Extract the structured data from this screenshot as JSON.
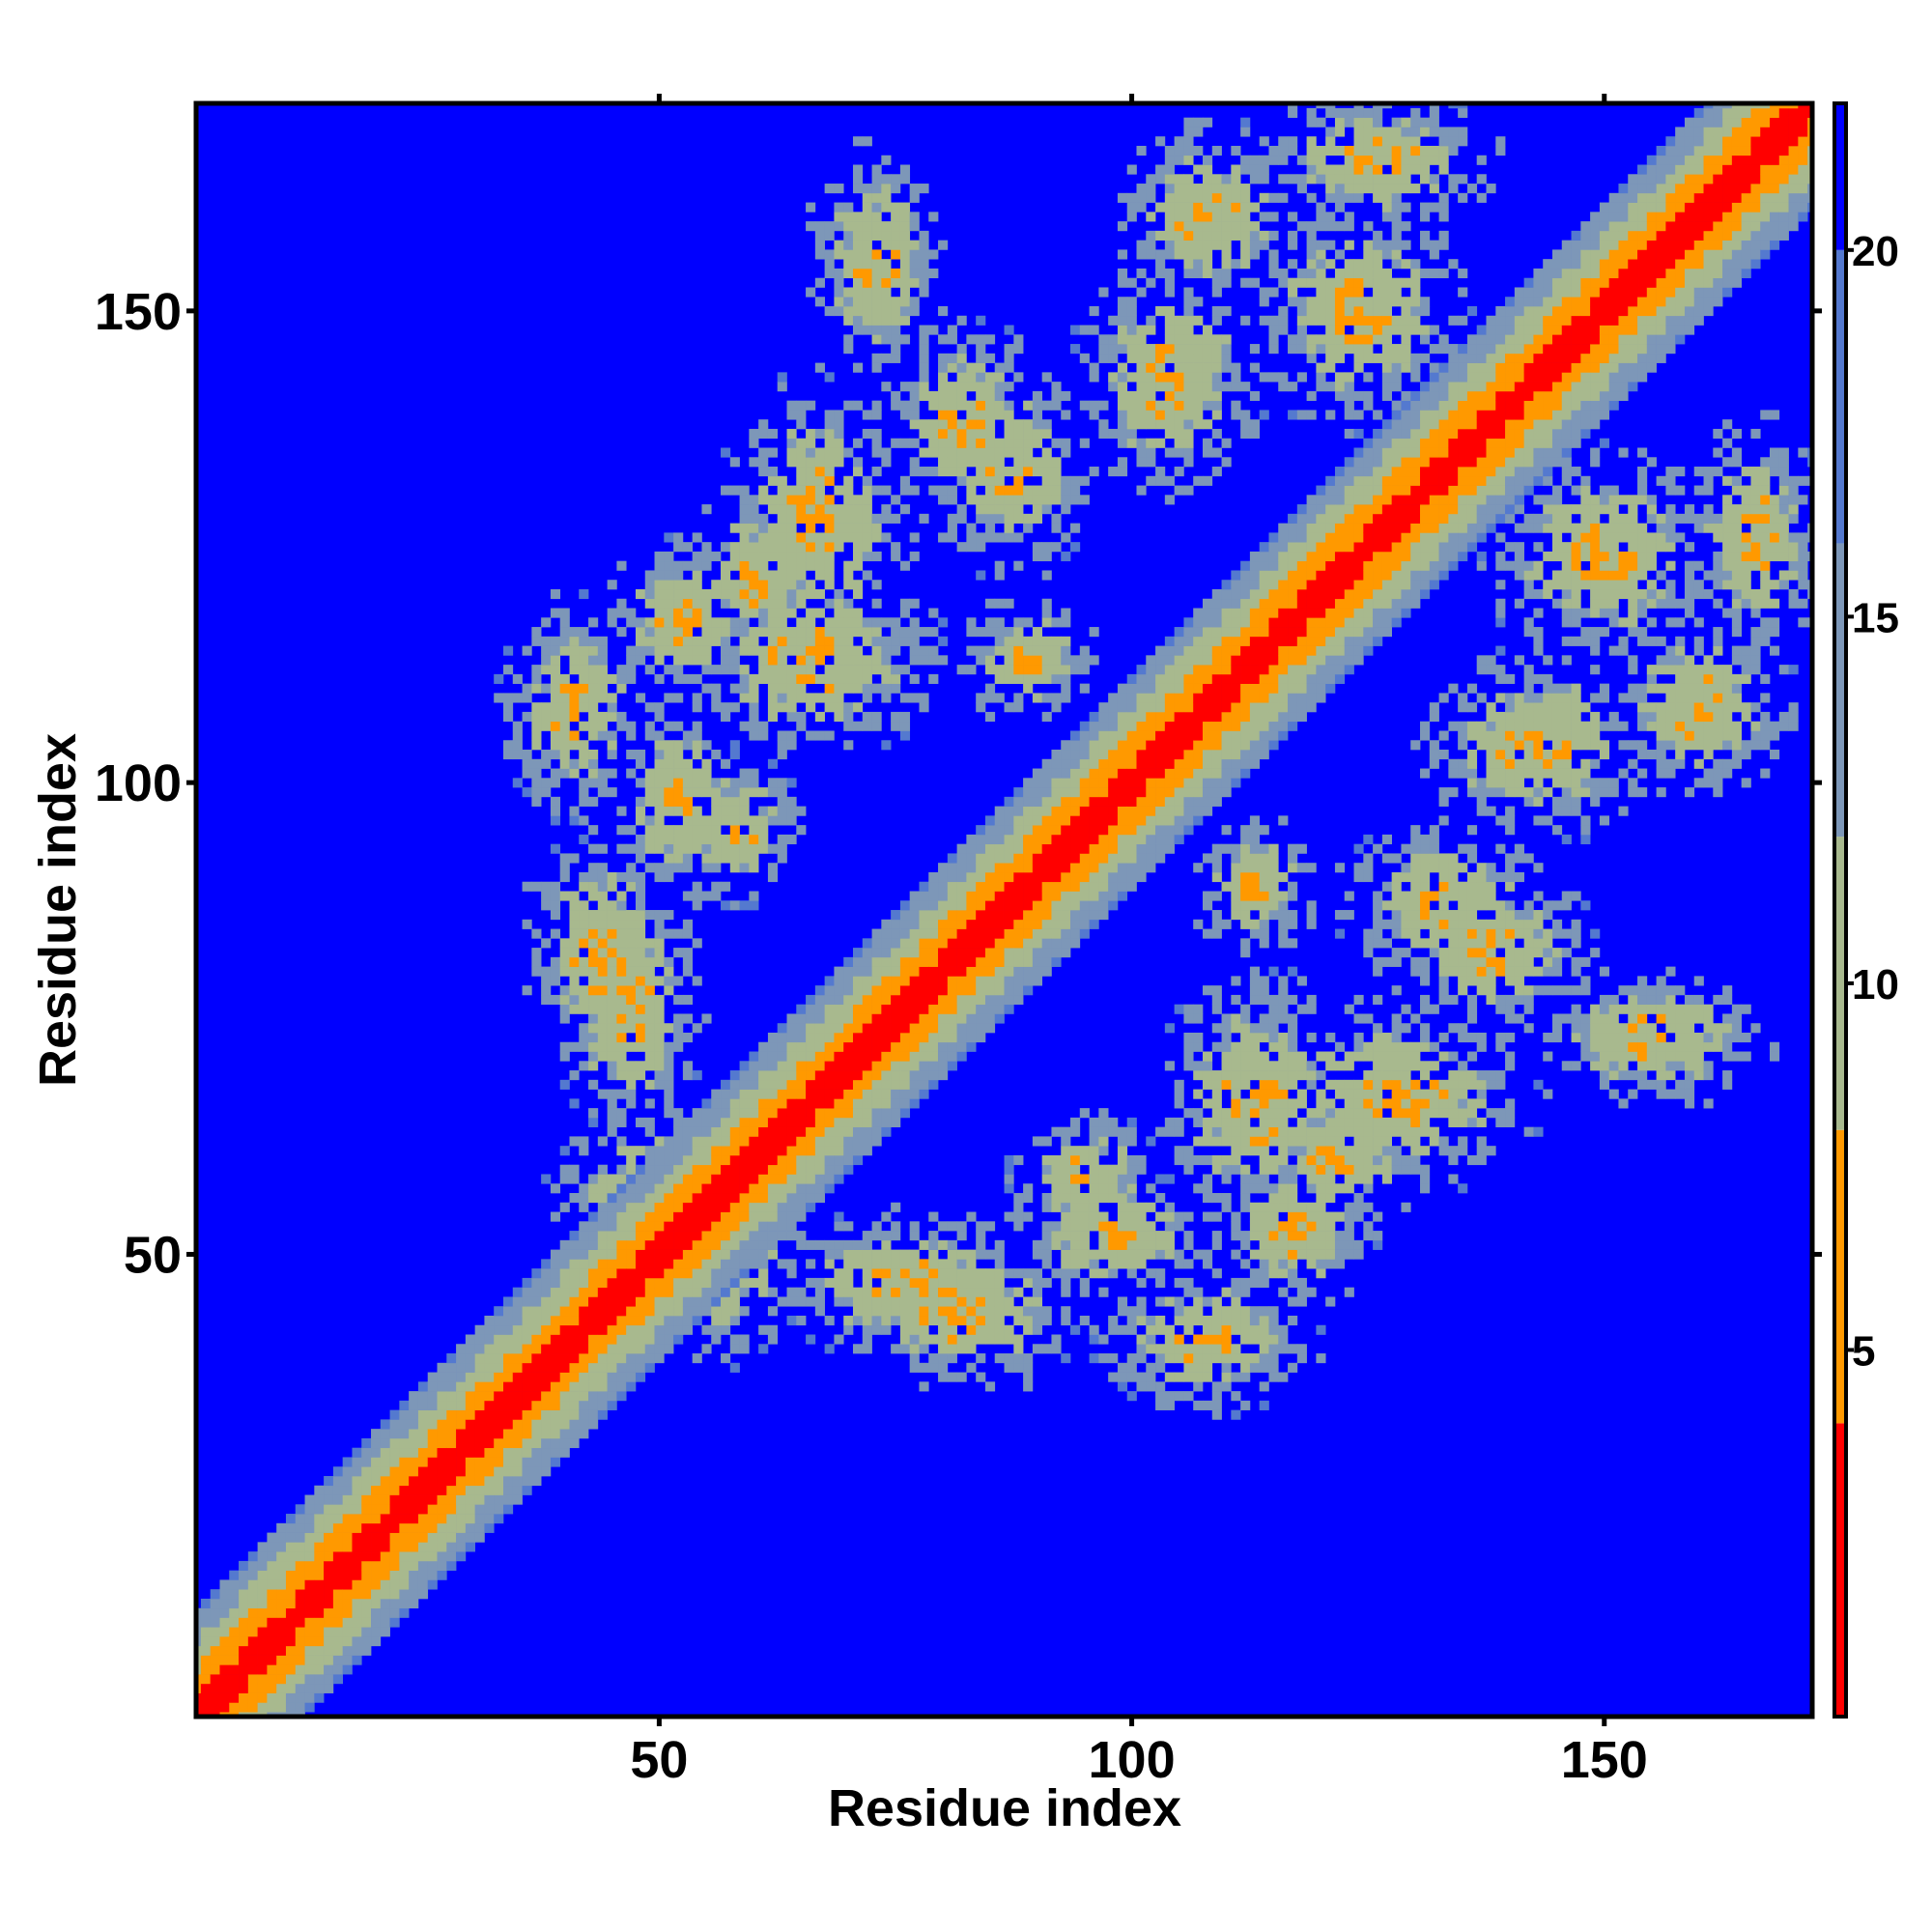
{
  "chart_data": {
    "type": "heatmap",
    "title": "",
    "xlabel": "Residue index",
    "ylabel": "Residue index",
    "n_residues": 172,
    "xlim": [
      1,
      172
    ],
    "ylim": [
      1,
      172
    ],
    "x_ticks": [
      50,
      100,
      150
    ],
    "y_ticks": [
      50,
      100,
      150
    ],
    "x_tick_labels": [
      "50",
      "100",
      "150"
    ],
    "y_tick_labels": [
      "50",
      "100",
      "150"
    ],
    "colorbar": {
      "range": [
        0,
        22
      ],
      "ticks": [
        5,
        10,
        15,
        20
      ],
      "tick_labels": [
        "5",
        "10",
        "15",
        "20"
      ],
      "placement": "right"
    },
    "colormap": [
      {
        "max": 4,
        "color": "#ff0000"
      },
      {
        "max": 8,
        "color": "#ff9900"
      },
      {
        "max": 12,
        "color": "#a8b98e"
      },
      {
        "max": 16,
        "color": "#7d97b8"
      },
      {
        "max": 20,
        "color": "#5479cf"
      },
      {
        "max": 999,
        "color": "#0000ff"
      }
    ],
    "background_color": "#0000ff",
    "contact_regions": [
      {
        "name": "diagonal",
        "x": [
          1,
          172
        ],
        "y": [
          1,
          172
        ],
        "value": "near 0"
      },
      {
        "x": [
          36,
          46
        ],
        "y": [
          100,
          115
        ],
        "value": "9-16"
      },
      {
        "x": [
          46,
          60
        ],
        "y": [
          110,
          125
        ],
        "value": "9-16"
      },
      {
        "x": [
          60,
          75
        ],
        "y": [
          115,
          145
        ],
        "value": "9-16"
      },
      {
        "x": [
          75,
          90
        ],
        "y": [
          128,
          150
        ],
        "value": "9-16"
      },
      {
        "x": [
          100,
          115
        ],
        "y": [
          150,
          168
        ],
        "value": "9-16"
      },
      {
        "x": [
          115,
          140
        ],
        "y": [
          160,
          172
        ],
        "value": "9-16"
      },
      {
        "x": [
          38,
          52
        ],
        "y": [
          72,
          95
        ],
        "value": "9-16"
      },
      {
        "x": [
          50,
          65
        ],
        "y": [
          38,
          60
        ],
        "value": "9-16"
      },
      {
        "x": [
          65,
          92
        ],
        "y": [
          40,
          55
        ],
        "value": "9-16"
      },
      {
        "x": [
          85,
          110
        ],
        "y": [
          46,
          58
        ],
        "value": "9-16"
      },
      {
        "x": [
          105,
          125
        ],
        "y": [
          55,
          80
        ],
        "value": "9-16"
      },
      {
        "x": [
          125,
          145
        ],
        "y": [
          80,
          95
        ],
        "value": "9-16"
      },
      {
        "x": [
          140,
          165
        ],
        "y": [
          115,
          135
        ],
        "value": "9-16"
      },
      {
        "x": [
          130,
          155
        ],
        "y": [
          95,
          115
        ],
        "value": "9-16"
      },
      {
        "x": [
          28,
          42
        ],
        "y": [
          30,
          45
        ],
        "value": "5-8"
      }
    ]
  }
}
